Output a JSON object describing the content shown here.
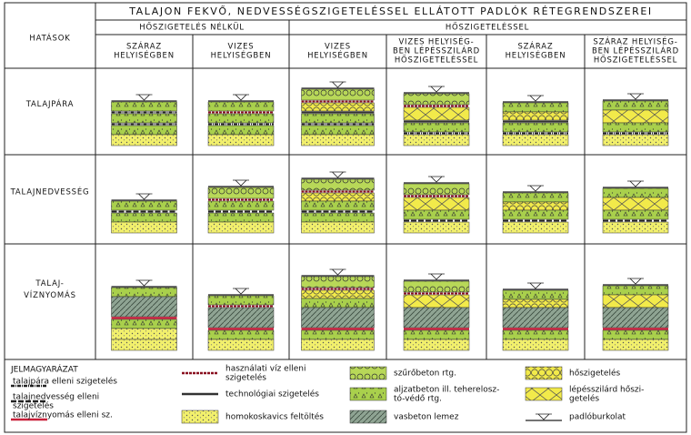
{
  "title": "TALAJON FEKVŐ, NEDVESSÉGSZIGETELÉSSEL ELLÁTOTT PADLÓK RÉTEGRENDSZEREI",
  "corner": "HATÁSOK",
  "groups": [
    "HŐSZIGETELÉS NÉLKÜL",
    "HŐSZIGETELÉSSEL"
  ],
  "columns": [
    [
      "SZÁRAZ",
      "HELYISÉGBEN"
    ],
    [
      "VIZES",
      "HELYISÉGBEN"
    ],
    [
      "VIZES",
      "HELYISÉGBEN"
    ],
    [
      "VIZES HELYISÉG-",
      "BEN LÉPÉSSZILÁRD",
      "HŐSZIGETELÉSSEL"
    ],
    [
      "SZÁRAZ",
      "HELYISÉGBEN"
    ],
    [
      "SZÁRAZ HELYISÉG-",
      "BEN LÉPÉSSZILÁRD",
      "HŐSZIGETELÉSSEL"
    ]
  ],
  "rows": [
    [
      "TALAJPÁRA"
    ],
    [
      "TALAJNEDVESSÉG"
    ],
    [
      "TALAJ-",
      "VÍZNYOMÁS"
    ]
  ],
  "legend": {
    "title": "JELMAGYARÁZAT",
    "items": [
      [
        "talajpára elleni szigetelés"
      ],
      [
        "talajnedvesség elleni",
        "szigetelés"
      ],
      [
        "talajvíznyomás elleni sz."
      ],
      [
        "használati víz elleni",
        "szigetelés"
      ],
      [
        "technológiai szigetelés"
      ],
      [
        "homokoskavics feltöltés"
      ],
      [
        "szűrőbeton rtg."
      ],
      [
        "aljzatbeton ill. teherelosz-",
        "tó-védő rtg."
      ],
      [
        "vasbeton lemez"
      ],
      [
        "hőszigetelés"
      ],
      [
        "lépésszilárd hőszi-",
        "getelés"
      ],
      [
        "padlóburkolat"
      ]
    ]
  }
}
